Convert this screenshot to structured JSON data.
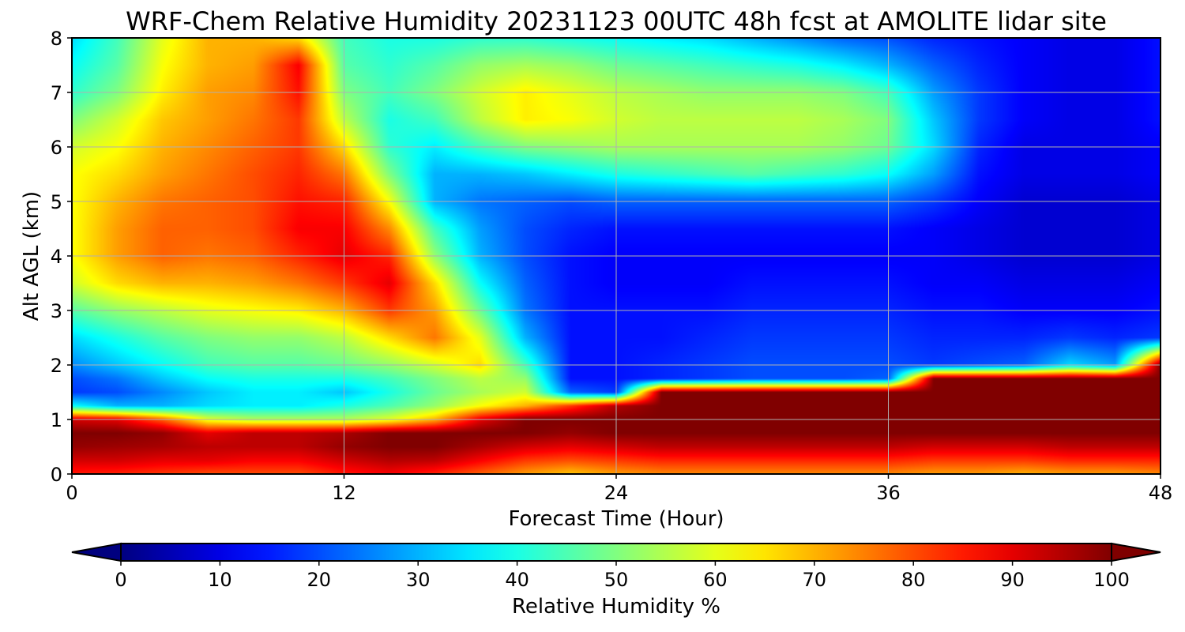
{
  "chart_data": {
    "type": "heatmap",
    "title": "WRF-Chem Relative Humidity 20231123 00UTC 48h fcst at AMOLITE lidar site",
    "xlabel": "Forecast Time (Hour)",
    "ylabel": "Alt AGL (km)",
    "xlim": [
      0,
      48
    ],
    "ylim": [
      0,
      8
    ],
    "xticks": [
      "0",
      "12",
      "24",
      "36",
      "48"
    ],
    "yticks": [
      "0",
      "1",
      "2",
      "3",
      "4",
      "5",
      "6",
      "7",
      "8"
    ],
    "grid": true,
    "colorbar": {
      "label": "Relative Humidity %",
      "range": [
        0,
        100
      ],
      "ticks": [
        "0",
        "10",
        "20",
        "30",
        "40",
        "50",
        "60",
        "70",
        "80",
        "90",
        "100"
      ],
      "extend": "both",
      "colormap": "jet"
    },
    "x": [
      0,
      2,
      4,
      6,
      8,
      10,
      12,
      14,
      16,
      18,
      20,
      22,
      24,
      26,
      28,
      30,
      32,
      34,
      36,
      38,
      40,
      42,
      44,
      46,
      48
    ],
    "y": [
      0,
      0.25,
      0.5,
      0.75,
      1,
      1.25,
      1.5,
      1.75,
      2,
      2.5,
      3,
      3.5,
      4,
      4.5,
      5,
      5.5,
      6,
      6.5,
      7,
      7.5,
      8
    ],
    "z": [
      [
        85,
        84,
        82,
        80,
        80,
        80,
        85,
        88,
        84,
        78,
        72,
        68,
        72,
        74,
        74,
        74,
        74,
        74,
        74,
        72,
        72,
        70,
        72,
        72,
        74
      ],
      [
        92,
        92,
        90,
        90,
        88,
        88,
        92,
        95,
        94,
        88,
        82,
        80,
        82,
        84,
        84,
        84,
        84,
        84,
        84,
        82,
        82,
        82,
        84,
        84,
        84
      ],
      [
        98,
        97,
        96,
        94,
        94,
        94,
        98,
        100,
        100,
        96,
        92,
        90,
        92,
        94,
        94,
        94,
        94,
        94,
        94,
        92,
        92,
        92,
        94,
        94,
        94
      ],
      [
        100,
        100,
        98,
        90,
        94,
        94,
        96,
        100,
        100,
        100,
        100,
        98,
        100,
        100,
        100,
        100,
        100,
        100,
        100,
        100,
        100,
        100,
        100,
        100,
        100
      ],
      [
        92,
        90,
        78,
        60,
        55,
        55,
        55,
        60,
        70,
        90,
        100,
        100,
        100,
        100,
        100,
        100,
        100,
        100,
        100,
        100,
        100,
        100,
        100,
        100,
        100
      ],
      [
        38,
        30,
        30,
        34,
        36,
        36,
        40,
        45,
        52,
        62,
        70,
        82,
        95,
        100,
        100,
        100,
        100,
        100,
        100,
        100,
        100,
        100,
        100,
        100,
        100
      ],
      [
        18,
        20,
        26,
        32,
        36,
        36,
        32,
        40,
        48,
        54,
        58,
        22,
        18,
        100,
        100,
        100,
        100,
        100,
        100,
        100,
        100,
        100,
        100,
        100,
        100
      ],
      [
        20,
        24,
        32,
        38,
        40,
        40,
        40,
        44,
        50,
        56,
        52,
        14,
        14,
        16,
        18,
        20,
        20,
        20,
        22,
        100,
        100,
        100,
        100,
        100,
        100
      ],
      [
        26,
        32,
        38,
        44,
        46,
        46,
        48,
        52,
        58,
        66,
        44,
        14,
        14,
        16,
        18,
        20,
        20,
        20,
        20,
        18,
        20,
        22,
        34,
        28,
        100
      ],
      [
        34,
        40,
        46,
        50,
        52,
        52,
        56,
        66,
        76,
        60,
        30,
        14,
        14,
        14,
        16,
        18,
        18,
        18,
        18,
        16,
        16,
        16,
        18,
        16,
        18
      ],
      [
        46,
        52,
        56,
        60,
        62,
        64,
        70,
        82,
        72,
        48,
        24,
        14,
        14,
        14,
        14,
        16,
        16,
        16,
        16,
        14,
        14,
        12,
        12,
        12,
        14
      ],
      [
        58,
        66,
        70,
        70,
        72,
        76,
        82,
        90,
        66,
        38,
        22,
        14,
        12,
        12,
        12,
        14,
        14,
        14,
        14,
        12,
        12,
        10,
        10,
        10,
        12
      ],
      [
        62,
        72,
        78,
        76,
        78,
        84,
        90,
        84,
        52,
        30,
        20,
        14,
        12,
        12,
        12,
        12,
        12,
        12,
        12,
        12,
        10,
        8,
        8,
        8,
        10
      ],
      [
        62,
        72,
        78,
        78,
        80,
        88,
        88,
        74,
        44,
        28,
        20,
        16,
        14,
        14,
        14,
        14,
        14,
        14,
        14,
        12,
        10,
        8,
        8,
        8,
        10
      ],
      [
        62,
        70,
        76,
        78,
        80,
        86,
        84,
        62,
        30,
        24,
        22,
        20,
        22,
        22,
        22,
        22,
        22,
        22,
        22,
        18,
        12,
        8,
        8,
        8,
        10
      ],
      [
        62,
        66,
        72,
        76,
        80,
        84,
        76,
        50,
        30,
        30,
        32,
        36,
        40,
        42,
        44,
        46,
        44,
        42,
        38,
        28,
        14,
        10,
        10,
        10,
        12
      ],
      [
        58,
        62,
        70,
        74,
        78,
        82,
        66,
        42,
        36,
        44,
        50,
        52,
        54,
        54,
        54,
        54,
        54,
        52,
        48,
        34,
        16,
        10,
        10,
        10,
        12
      ],
      [
        50,
        58,
        68,
        72,
        76,
        82,
        56,
        40,
        44,
        56,
        64,
        62,
        58,
        56,
        56,
        56,
        56,
        54,
        50,
        32,
        18,
        12,
        10,
        10,
        14
      ],
      [
        42,
        50,
        64,
        72,
        74,
        86,
        50,
        44,
        50,
        58,
        64,
        60,
        56,
        54,
        52,
        52,
        52,
        50,
        44,
        28,
        18,
        12,
        10,
        10,
        14
      ],
      [
        38,
        46,
        62,
        70,
        72,
        88,
        46,
        42,
        46,
        52,
        54,
        52,
        48,
        46,
        44,
        42,
        40,
        36,
        30,
        22,
        16,
        12,
        10,
        10,
        14
      ],
      [
        34,
        44,
        60,
        70,
        70,
        66,
        44,
        40,
        40,
        42,
        42,
        40,
        38,
        36,
        34,
        30,
        26,
        22,
        20,
        16,
        14,
        12,
        10,
        10,
        14
      ]
    ]
  }
}
